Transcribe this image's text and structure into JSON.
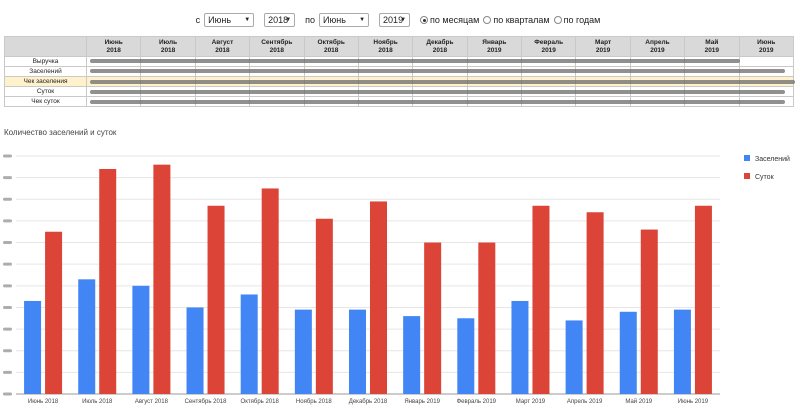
{
  "filters": {
    "from_label": "с",
    "from_month": "Июнь",
    "from_year": "2018",
    "to_label": "по",
    "to_month": "Июнь",
    "to_year": "2019",
    "modes": [
      {
        "label": "по месяцам",
        "selected": true
      },
      {
        "label": "по кварталам",
        "selected": false
      },
      {
        "label": "по годам",
        "selected": false
      }
    ]
  },
  "summary_table": {
    "columns": [
      {
        "month": "Июнь",
        "year": "2018"
      },
      {
        "month": "Июль",
        "year": "2018"
      },
      {
        "month": "Август",
        "year": "2018"
      },
      {
        "month": "Сентябрь",
        "year": "2018"
      },
      {
        "month": "Октябрь",
        "year": "2018"
      },
      {
        "month": "Ноябрь",
        "year": "2018"
      },
      {
        "month": "Декабрь",
        "year": "2018"
      },
      {
        "month": "Январь",
        "year": "2019"
      },
      {
        "month": "Февраль",
        "year": "2019"
      },
      {
        "month": "Март",
        "year": "2019"
      },
      {
        "month": "Апрель",
        "year": "2019"
      },
      {
        "month": "Май",
        "year": "2019"
      },
      {
        "month": "Июнь",
        "year": "2019"
      }
    ],
    "rows": [
      {
        "label": "Выручка",
        "highlight": false
      },
      {
        "label": "Заселений",
        "highlight": false
      },
      {
        "label": "Чек заселения",
        "highlight": true
      },
      {
        "label": "Суток",
        "highlight": false
      },
      {
        "label": "Чек суток",
        "highlight": false
      }
    ]
  },
  "chart_title": "Количество заселений и суток",
  "colors": {
    "blue": "#4285f4",
    "red": "#db4437"
  },
  "chart_data": {
    "type": "bar",
    "categories": [
      "Июнь 2018",
      "Июль 2018",
      "Август 2018",
      "Сентябрь 2018",
      "Октябрь 2018",
      "Ноябрь 2018",
      "Декабрь 2018",
      "Январь 2019",
      "Февраль 2019",
      "Март 2019",
      "Апрель 2019",
      "Май 2019",
      "Июнь 2019"
    ],
    "series": [
      {
        "name": "Заселений",
        "values": [
          43,
          53,
          50,
          40,
          46,
          39,
          39,
          36,
          35,
          43,
          34,
          38,
          39
        ]
      },
      {
        "name": "Суток",
        "values": [
          75,
          104,
          106,
          87,
          95,
          81,
          89,
          70,
          70,
          87,
          84,
          76,
          87
        ]
      }
    ],
    "ylim": [
      0,
      110
    ],
    "grid": true,
    "legend_position": "right"
  }
}
